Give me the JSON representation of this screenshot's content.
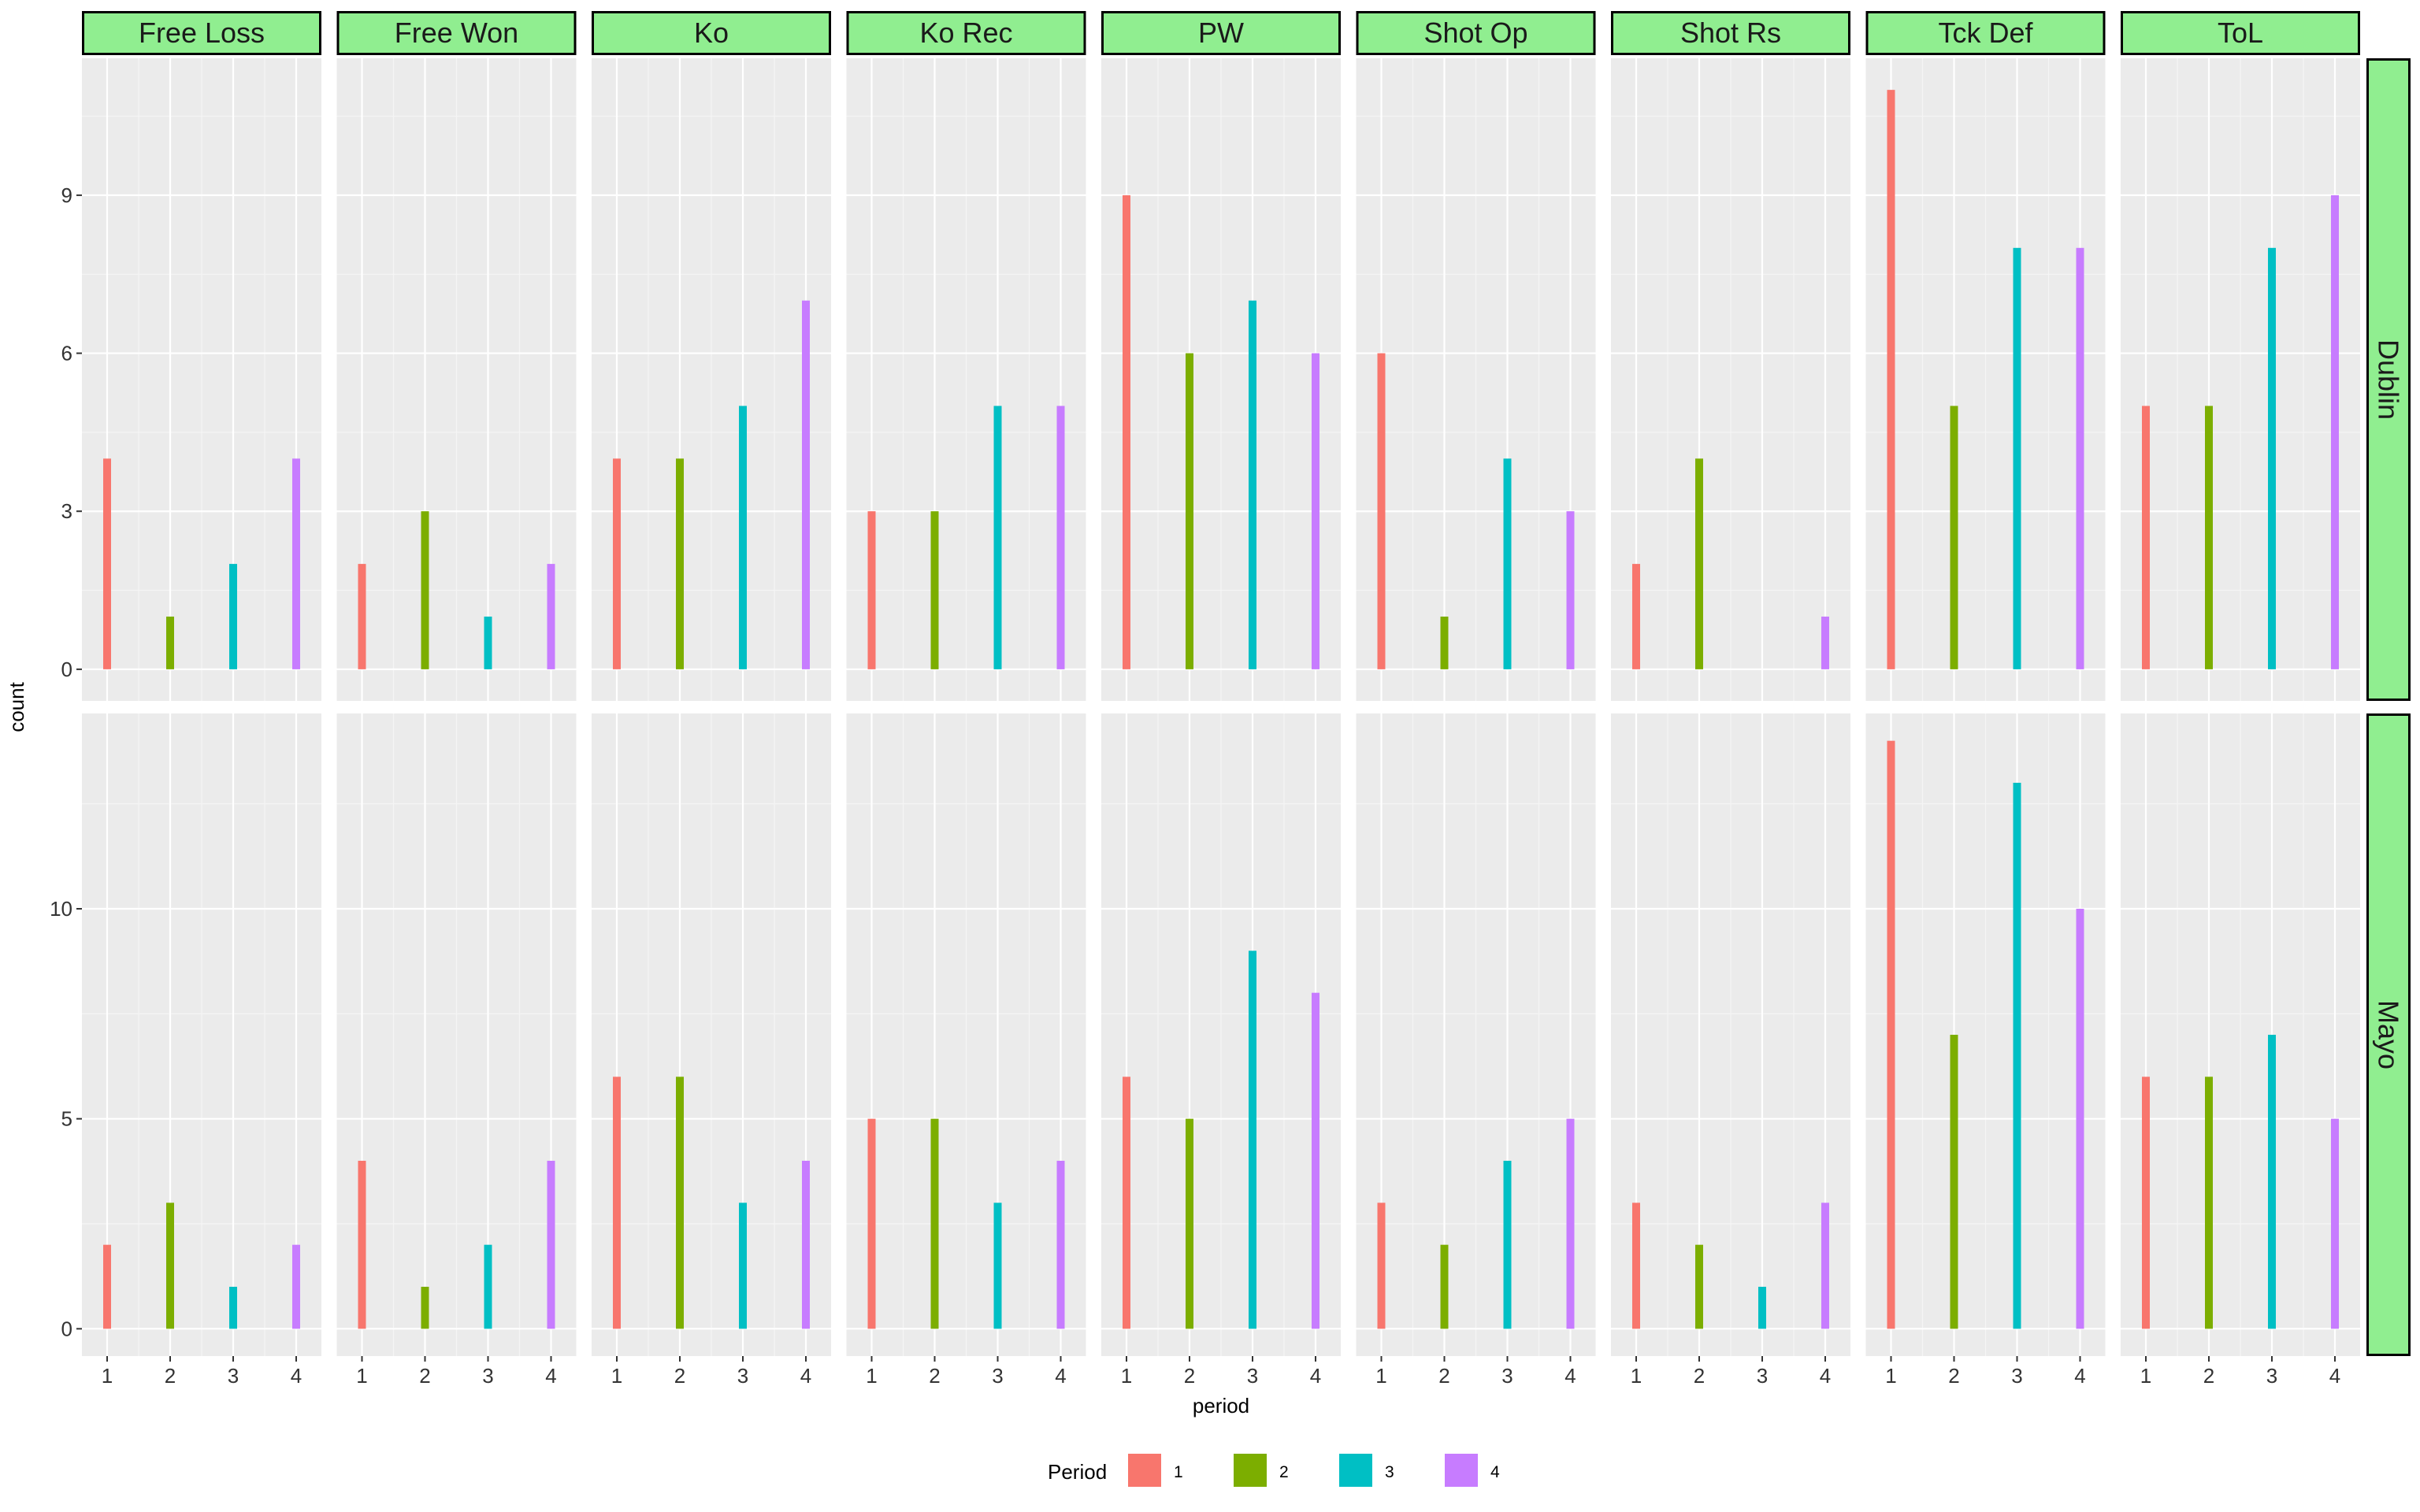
{
  "chart_data": {
    "type": "bar",
    "facet_columns": [
      "Free Loss",
      "Free Won",
      "Ko",
      "Ko Rec",
      "PW",
      "Shot Op",
      "Shot Rs",
      "Tck Def",
      "ToL"
    ],
    "facet_rows": [
      "Dublin",
      "Mayo"
    ],
    "categories": [
      1,
      2,
      3,
      4
    ],
    "xlabel": "period",
    "ylabel": "count",
    "legend": {
      "title": "Period",
      "position": "bottom",
      "items": [
        "1",
        "2",
        "3",
        "4"
      ]
    },
    "series_colors": {
      "1": "#F8766D",
      "2": "#7CAE00",
      "3": "#00BFC4",
      "4": "#C77CFF"
    },
    "strip_color": "#90EE90",
    "panel_background": "#EBEBEB",
    "grid": true,
    "y_scale": "free per row",
    "rows": [
      {
        "name": "Dublin",
        "ylim": [
          -0.6,
          11.6
        ],
        "yticks": [
          0,
          3,
          6,
          9
        ],
        "panels": {
          "Free Loss": [
            4,
            1,
            2,
            4
          ],
          "Free Won": [
            2,
            3,
            1,
            2
          ],
          "Ko": [
            4,
            4,
            5,
            7
          ],
          "Ko Rec": [
            3,
            3,
            5,
            5
          ],
          "PW": [
            9,
            6,
            7,
            6
          ],
          "Shot Op": [
            6,
            1,
            4,
            3
          ],
          "Shot Rs": [
            2,
            4,
            0,
            1
          ],
          "Tck Def": [
            11,
            5,
            8,
            8
          ],
          "ToL": [
            5,
            5,
            8,
            9
          ]
        }
      },
      {
        "name": "Mayo",
        "ylim": [
          -0.65,
          14.65
        ],
        "yticks": [
          0,
          5,
          10
        ],
        "panels": {
          "Free Loss": [
            2,
            3,
            1,
            2
          ],
          "Free Won": [
            4,
            1,
            2,
            4
          ],
          "Ko": [
            6,
            6,
            3,
            4
          ],
          "Ko Rec": [
            5,
            5,
            3,
            4
          ],
          "PW": [
            6,
            5,
            9,
            8
          ],
          "Shot Op": [
            3,
            2,
            4,
            5
          ],
          "Shot Rs": [
            3,
            2,
            1,
            3
          ],
          "Tck Def": [
            14,
            7,
            13,
            10
          ],
          "ToL": [
            6,
            6,
            7,
            5
          ]
        }
      }
    ]
  }
}
